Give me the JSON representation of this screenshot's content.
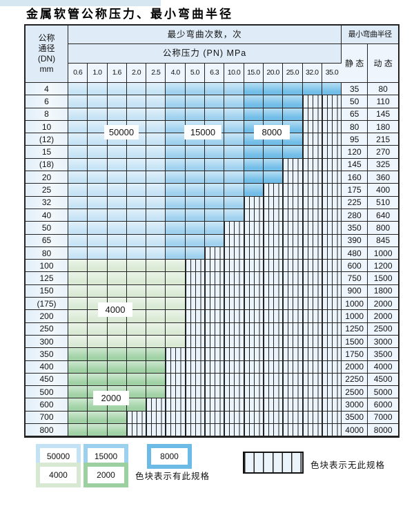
{
  "title": "金属软管公称压力、最小弯曲半径",
  "table": {
    "corner_header": [
      "公称",
      "通径",
      "(DN)",
      "mm"
    ],
    "cycles_header": "最少弯曲次数，次",
    "pressure_header": "公称压力 (PN) MPa",
    "pressures": [
      "0.6",
      "1.0",
      "1.6",
      "2.0",
      "2.5",
      "4.0",
      "5.0",
      "6.3",
      "10.0",
      "15.0",
      "20.0",
      "25.0",
      "32.0",
      "35.0"
    ],
    "radius_header": "最小弯曲半径",
    "static_header": "静 态",
    "dynamic_header": "动 态",
    "rows": [
      {
        "dn": "4",
        "group": "b",
        "last": 13,
        "st": "35",
        "dy": "80"
      },
      {
        "dn": "6",
        "group": "b",
        "last": 11,
        "st": "50",
        "dy": "110"
      },
      {
        "dn": "8",
        "group": "b",
        "last": 11,
        "st": "65",
        "dy": "145"
      },
      {
        "dn": "10",
        "group": "b",
        "last": 11,
        "st": "80",
        "dy": "180"
      },
      {
        "dn": "(12)",
        "group": "b",
        "last": 11,
        "st": "95",
        "dy": "215"
      },
      {
        "dn": "15",
        "group": "b",
        "last": 11,
        "st": "120",
        "dy": "270"
      },
      {
        "dn": "(18)",
        "group": "b",
        "last": 10,
        "st": "145",
        "dy": "325"
      },
      {
        "dn": "20",
        "group": "b",
        "last": 10,
        "st": "160",
        "dy": "360"
      },
      {
        "dn": "25",
        "group": "b",
        "last": 9,
        "st": "175",
        "dy": "400"
      },
      {
        "dn": "32",
        "group": "b",
        "last": 8,
        "st": "225",
        "dy": "510"
      },
      {
        "dn": "40",
        "group": "b",
        "last": 8,
        "st": "280",
        "dy": "640"
      },
      {
        "dn": "50",
        "group": "b",
        "last": 7,
        "st": "350",
        "dy": "800"
      },
      {
        "dn": "65",
        "group": "b",
        "last": 7,
        "st": "390",
        "dy": "845"
      },
      {
        "dn": "80",
        "group": "b",
        "last": 6,
        "st": "480",
        "dy": "1000"
      },
      {
        "dn": "100",
        "group": "g4",
        "last": 5,
        "st": "600",
        "dy": "1200"
      },
      {
        "dn": "125",
        "group": "g4",
        "last": 5,
        "st": "750",
        "dy": "1500"
      },
      {
        "dn": "150",
        "group": "g4",
        "last": 5,
        "st": "900",
        "dy": "1800"
      },
      {
        "dn": "(175)",
        "group": "g4",
        "last": 5,
        "st": "1000",
        "dy": "2000"
      },
      {
        "dn": "200",
        "group": "g4",
        "last": 5,
        "st": "1000",
        "dy": "2000"
      },
      {
        "dn": "250",
        "group": "g4",
        "last": 5,
        "st": "1250",
        "dy": "2500"
      },
      {
        "dn": "300",
        "group": "g4",
        "last": 5,
        "st": "1500",
        "dy": "3000"
      },
      {
        "dn": "350",
        "group": "g2",
        "last": 4,
        "st": "1750",
        "dy": "3500"
      },
      {
        "dn": "400",
        "group": "g2",
        "last": 4,
        "st": "2000",
        "dy": "4000"
      },
      {
        "dn": "450",
        "group": "g2",
        "last": 4,
        "st": "2250",
        "dy": "4500"
      },
      {
        "dn": "500",
        "group": "g2",
        "last": 4,
        "st": "2500",
        "dy": "5000"
      },
      {
        "dn": "600",
        "group": "g2",
        "last": 3,
        "st": "3000",
        "dy": "6000"
      },
      {
        "dn": "700",
        "group": "g2",
        "last": 2,
        "st": "3500",
        "dy": "7000"
      },
      {
        "dn": "800",
        "group": "g2",
        "last": 2,
        "st": "4000",
        "dy": "8000"
      }
    ]
  },
  "cycle_labels": [
    {
      "text": "50000"
    },
    {
      "text": "15000"
    },
    {
      "text": "8000"
    },
    {
      "text": "4000"
    },
    {
      "text": "2000"
    }
  ],
  "legend": {
    "items": [
      {
        "label": "50000",
        "color_key": "c50000"
      },
      {
        "label": "15000",
        "color_key": "c15000"
      },
      {
        "label": "8000",
        "color_key": "c8000"
      },
      {
        "label": "4000",
        "color_key": "c4000"
      },
      {
        "label": "2000",
        "color_key": "c2000"
      }
    ],
    "has_spec_text": "色块表示有此规格",
    "no_spec_text": "色块表示无此规格"
  },
  "colors": {
    "c50000": "#c4e2f5",
    "c15000": "#9bd0ef",
    "c8000": "#6cbbe7",
    "c4000": "#d8e9d3",
    "c2000": "#9cd0a1",
    "stripe-bg": "#ecf4fb",
    "cell-bg": "#eef5fc",
    "hdr-bg": "#dfecf7",
    "border": "#222222"
  }
}
